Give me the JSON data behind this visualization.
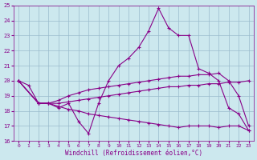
{
  "xlabel": "Windchill (Refroidissement éolien,°C)",
  "xlim": [
    -0.5,
    23.5
  ],
  "ylim": [
    16,
    25
  ],
  "yticks": [
    16,
    17,
    18,
    19,
    20,
    21,
    22,
    23,
    24,
    25
  ],
  "xticks": [
    0,
    1,
    2,
    3,
    4,
    5,
    6,
    7,
    8,
    9,
    10,
    11,
    12,
    13,
    14,
    15,
    16,
    17,
    18,
    19,
    20,
    21,
    22,
    23
  ],
  "background_color": "#cce8ee",
  "line_color": "#880088",
  "grid_color": "#99bbcc",
  "lines": [
    {
      "x": [
        0,
        1,
        2,
        3,
        4,
        5,
        6,
        7,
        8,
        9,
        10,
        11,
        12,
        13,
        14,
        15,
        16,
        17,
        18,
        19,
        20,
        21,
        22,
        23
      ],
      "y": [
        20.0,
        19.7,
        18.5,
        18.5,
        18.2,
        18.5,
        17.3,
        16.5,
        18.5,
        20.0,
        21.0,
        21.5,
        22.2,
        23.3,
        24.8,
        23.5,
        23.0,
        23.0,
        20.8,
        20.5,
        20.0,
        18.2,
        17.8,
        16.7
      ]
    },
    {
      "x": [
        0,
        2,
        3,
        4,
        5,
        6,
        7,
        8,
        9,
        10,
        11,
        12,
        13,
        14,
        15,
        16,
        17,
        18,
        19,
        20,
        21,
        22,
        23
      ],
      "y": [
        20.0,
        18.5,
        18.5,
        18.7,
        19.0,
        19.2,
        19.4,
        19.5,
        19.6,
        19.7,
        19.8,
        19.9,
        20.0,
        20.1,
        20.2,
        20.3,
        20.3,
        20.4,
        20.4,
        20.5,
        20.0,
        19.0,
        17.0
      ]
    },
    {
      "x": [
        0,
        2,
        3,
        4,
        5,
        6,
        7,
        8,
        9,
        10,
        11,
        12,
        13,
        14,
        15,
        16,
        17,
        18,
        19,
        20,
        21,
        22,
        23
      ],
      "y": [
        20.0,
        18.5,
        18.5,
        18.5,
        18.6,
        18.7,
        18.8,
        18.9,
        19.0,
        19.1,
        19.2,
        19.3,
        19.4,
        19.5,
        19.6,
        19.6,
        19.7,
        19.7,
        19.8,
        19.8,
        19.9,
        19.9,
        20.0
      ]
    },
    {
      "x": [
        0,
        2,
        3,
        4,
        5,
        6,
        7,
        8,
        9,
        10,
        11,
        12,
        13,
        14,
        15,
        16,
        17,
        18,
        19,
        20,
        21,
        22,
        23
      ],
      "y": [
        20.0,
        18.5,
        18.5,
        18.3,
        18.1,
        18.0,
        17.8,
        17.7,
        17.6,
        17.5,
        17.4,
        17.3,
        17.2,
        17.1,
        17.0,
        16.9,
        17.0,
        17.0,
        17.0,
        16.9,
        17.0,
        17.0,
        16.7
      ]
    }
  ]
}
